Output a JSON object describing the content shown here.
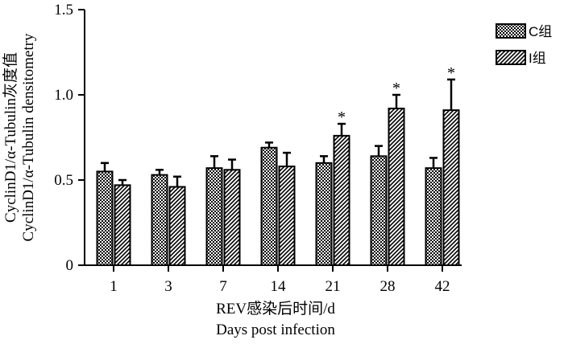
{
  "chart_data": {
    "type": "bar",
    "categories": [
      "1",
      "3",
      "7",
      "14",
      "21",
      "28",
      "42"
    ],
    "series": [
      {
        "name": "C组",
        "values": [
          0.55,
          0.53,
          0.57,
          0.69,
          0.6,
          0.64,
          0.57
        ],
        "errors": [
          0.05,
          0.03,
          0.07,
          0.03,
          0.04,
          0.06,
          0.06
        ],
        "significant": [
          false,
          false,
          false,
          false,
          false,
          false,
          false
        ]
      },
      {
        "name": "I组",
        "values": [
          0.47,
          0.46,
          0.56,
          0.58,
          0.76,
          0.92,
          0.91
        ],
        "errors": [
          0.03,
          0.06,
          0.06,
          0.08,
          0.07,
          0.08,
          0.18
        ],
        "significant": [
          false,
          false,
          false,
          false,
          true,
          true,
          true
        ]
      }
    ],
    "ylim": [
      0,
      1.5
    ],
    "yticks": [
      "0",
      "0.5",
      "1.0",
      "1.5"
    ],
    "ylabel_cn": "CyclinD1/α-Tubulin灰度值",
    "ylabel_en": "CyclinD1/α-Tubulin densitometry",
    "xlabel_cn": "REV感染后时间/d",
    "xlabel_en": "Days post infection",
    "significance_marker": "*",
    "legend_position": "top-right"
  }
}
